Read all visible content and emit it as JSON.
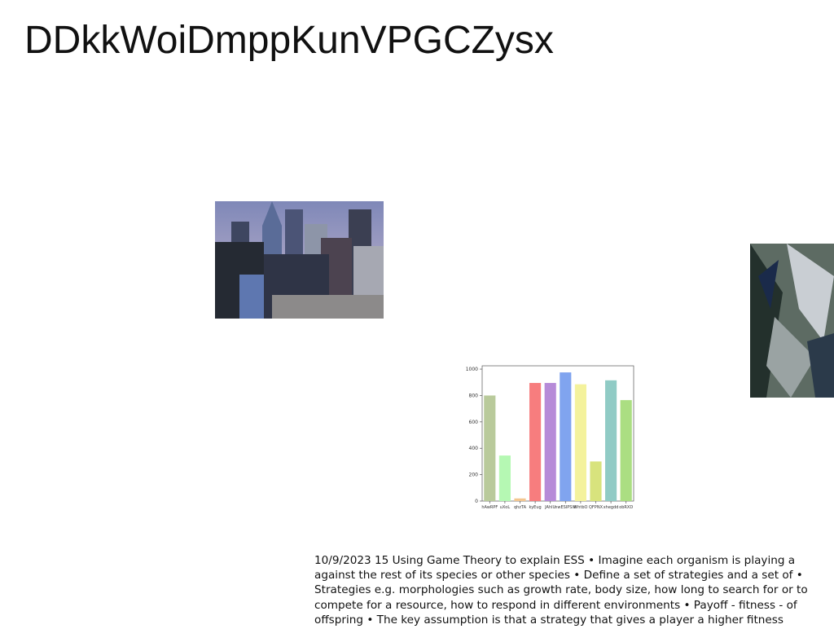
{
  "title": "DDkkWoiDmppKunVPGCZysx",
  "body_text": "10/9/2023 15 Using Game Theory to explain ESS • Imagine each organism is playing a against the rest of its species or other species • Define a set of strategies and a set of • Strategies e.g. morphologies such as growth rate, body size, how long to search for or to compete for a resource, how to respond in different environments • Payoff - fitness - of offspring • The key assumption is that a strategy that gives a player a higher fitness",
  "chart_data": {
    "type": "bar",
    "categories": [
      "hAwRPF",
      "uXoL",
      "qhzTA",
      "kyEug",
      "JAhlU",
      "nwESIPSW",
      "WhtbO",
      "QFPNX",
      "xhegdd",
      "obRXD"
    ],
    "values": [
      800,
      345,
      20,
      895,
      895,
      975,
      885,
      300,
      915,
      765
    ],
    "colors": [
      "#b9ca9b",
      "#b5f8b3",
      "#f3c690",
      "#f77d7e",
      "#b68bd8",
      "#80a4ef",
      "#f4f29c",
      "#d8e37d",
      "#90cbc5",
      "#abde82"
    ],
    "ylim": [
      0,
      1025
    ],
    "yticks": [
      0,
      200,
      400,
      600,
      800,
      1000
    ]
  }
}
